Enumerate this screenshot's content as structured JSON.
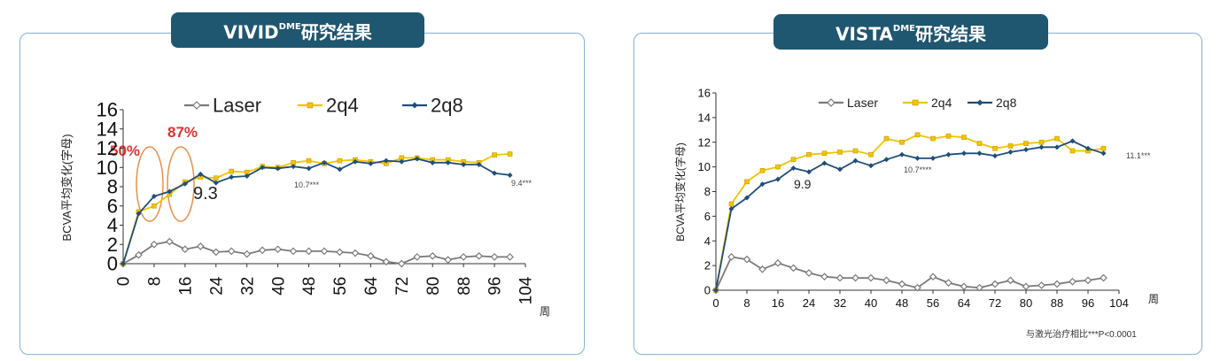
{
  "left": {
    "banner": {
      "prefix": "VIVID",
      "sup": "DME",
      "suffix": "研究结果"
    },
    "annotations": {
      "pct1": "50%",
      "pct2": "87%",
      "val": "9.3",
      "mid": "10.7***",
      "end": "9.4***",
      "week": "周"
    },
    "chart_data": {
      "type": "line",
      "title": "VIVID DME研究结果",
      "ylabel": "BCVA平均变化(字母)",
      "xlabel": "周",
      "ylim": [
        0,
        16
      ],
      "xlim": [
        0,
        104
      ],
      "xticks": [
        0,
        8,
        16,
        24,
        32,
        40,
        48,
        56,
        64,
        72,
        80,
        88,
        96,
        104
      ],
      "yticks": [
        0,
        2,
        4,
        6,
        8,
        10,
        12,
        14,
        16
      ],
      "series": [
        {
          "name": "Laser",
          "color": "#7a7a7a",
          "x": [
            0,
            4,
            8,
            12,
            16,
            20,
            24,
            28,
            32,
            36,
            40,
            44,
            48,
            52,
            56,
            60,
            64,
            68,
            72,
            76,
            80,
            84,
            88,
            92,
            96,
            100
          ],
          "y": [
            0,
            0.9,
            2.0,
            2.3,
            1.5,
            1.8,
            1.2,
            1.3,
            1.0,
            1.4,
            1.5,
            1.3,
            1.3,
            1.3,
            1.2,
            1.1,
            0.8,
            0.2,
            0.0,
            0.7,
            0.8,
            0.4,
            0.7,
            0.8,
            0.7,
            0.7
          ]
        },
        {
          "name": "2q4",
          "color": "#f2c400",
          "x": [
            0,
            4,
            8,
            12,
            16,
            20,
            24,
            28,
            32,
            36,
            40,
            44,
            48,
            52,
            56,
            60,
            64,
            68,
            72,
            76,
            80,
            84,
            88,
            92,
            96,
            100
          ],
          "y": [
            0,
            5.4,
            6.0,
            7.2,
            8.5,
            9.0,
            8.9,
            9.6,
            9.5,
            10.1,
            10.0,
            10.5,
            10.7,
            10.4,
            10.7,
            10.8,
            10.6,
            10.4,
            11.0,
            11.0,
            10.8,
            10.8,
            10.6,
            10.5,
            11.3,
            11.4
          ]
        },
        {
          "name": "2q8",
          "color": "#1f4e79",
          "x": [
            0,
            4,
            8,
            12,
            16,
            20,
            24,
            28,
            32,
            36,
            40,
            44,
            48,
            52,
            56,
            60,
            64,
            68,
            72,
            76,
            80,
            84,
            88,
            92,
            96,
            100
          ],
          "y": [
            0,
            5.2,
            7.0,
            7.5,
            8.3,
            9.3,
            8.4,
            9.0,
            9.1,
            10.0,
            9.9,
            10.1,
            9.9,
            10.5,
            9.8,
            10.6,
            10.4,
            10.7,
            10.6,
            10.9,
            10.5,
            10.5,
            10.3,
            10.3,
            9.4,
            9.2
          ]
        }
      ]
    }
  },
  "right": {
    "banner": {
      "prefix": "VISTA",
      "sup": "DME",
      "suffix": "研究结果"
    },
    "annotations": {
      "val": "9.9",
      "mid": "10.7****",
      "end": "11.1***",
      "week": "周",
      "footnote": "与激光治疗相比***P<0.0001"
    },
    "chart_data": {
      "type": "line",
      "title": "VISTA DME研究结果",
      "ylabel": "BCVA平均变化(字母)",
      "xlabel": "周",
      "ylim": [
        0,
        16
      ],
      "xlim": [
        0,
        104
      ],
      "xticks": [
        0,
        8,
        16,
        24,
        32,
        40,
        48,
        56,
        64,
        72,
        80,
        88,
        96,
        104
      ],
      "yticks": [
        0,
        2,
        4,
        6,
        8,
        10,
        12,
        14,
        16
      ],
      "series": [
        {
          "name": "Laser",
          "color": "#7a7a7a",
          "x": [
            0,
            4,
            8,
            12,
            16,
            20,
            24,
            28,
            32,
            36,
            40,
            44,
            48,
            52,
            56,
            60,
            64,
            68,
            72,
            76,
            80,
            84,
            88,
            92,
            96,
            100
          ],
          "y": [
            0,
            2.7,
            2.5,
            1.7,
            2.2,
            1.8,
            1.4,
            1.1,
            1.0,
            1.0,
            1.0,
            0.8,
            0.5,
            0.2,
            1.1,
            0.6,
            0.3,
            0.2,
            0.5,
            0.8,
            0.3,
            0.4,
            0.5,
            0.7,
            0.8,
            1.0
          ]
        },
        {
          "name": "2q4",
          "color": "#f2c400",
          "x": [
            0,
            4,
            8,
            12,
            16,
            20,
            24,
            28,
            32,
            36,
            40,
            44,
            48,
            52,
            56,
            60,
            64,
            68,
            72,
            76,
            80,
            84,
            88,
            92,
            96,
            100
          ],
          "y": [
            0,
            7.0,
            8.8,
            9.7,
            10.0,
            10.6,
            11.0,
            11.1,
            11.2,
            11.3,
            11.0,
            12.3,
            12.0,
            12.6,
            12.3,
            12.5,
            12.4,
            11.9,
            11.5,
            11.7,
            11.9,
            12.0,
            12.3,
            11.3,
            11.3,
            11.5
          ]
        },
        {
          "name": "2q8",
          "color": "#1f4e79",
          "x": [
            0,
            4,
            8,
            12,
            16,
            20,
            24,
            28,
            32,
            36,
            40,
            44,
            48,
            52,
            56,
            60,
            64,
            68,
            72,
            76,
            80,
            84,
            88,
            92,
            96,
            100
          ],
          "y": [
            0,
            6.6,
            7.5,
            8.6,
            9.0,
            9.9,
            9.6,
            10.3,
            9.8,
            10.5,
            10.1,
            10.6,
            11.0,
            10.7,
            10.7,
            11.0,
            11.1,
            11.1,
            10.9,
            11.2,
            11.4,
            11.6,
            11.6,
            12.1,
            11.5,
            11.1
          ]
        }
      ]
    }
  }
}
